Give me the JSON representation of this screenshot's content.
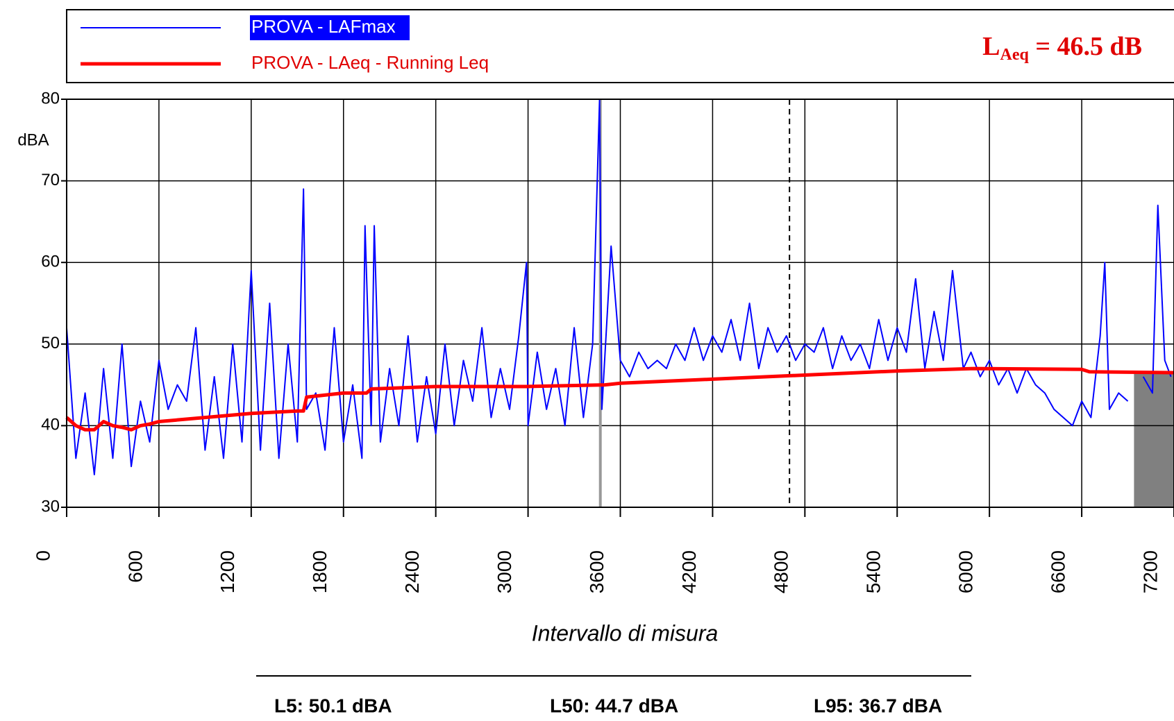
{
  "chart_data": {
    "type": "line",
    "y_label": "dBA",
    "x_label": "Intervallo di misura",
    "annotation": {
      "main": "L",
      "sub": "Aeq",
      "rest": " = 46.5 dB"
    },
    "stats": [
      "L5: 50.1 dBA",
      "L50: 44.7 dBA",
      "L95: 36.7 dBA"
    ],
    "xlim": [
      0,
      7200
    ],
    "ylim": [
      30,
      80
    ],
    "xticks": [
      0,
      600,
      1200,
      1800,
      2400,
      3000,
      3600,
      4200,
      4800,
      5400,
      6000,
      6600,
      7200
    ],
    "yticks": [
      30,
      40,
      50,
      60,
      70,
      80
    ],
    "grid": true,
    "vlines": [
      {
        "x": 3470,
        "color": "#999999",
        "dash": false
      },
      {
        "x": 4700,
        "color": "#000000",
        "dash": true
      }
    ],
    "shade": {
      "x": [
        6940,
        7200
      ],
      "y": [
        30,
        46.5
      ],
      "color": "#808080"
    },
    "series": [
      {
        "name": "PROVA - LAFmax",
        "color": "#0000ff",
        "x": [
          0,
          60,
          120,
          180,
          240,
          300,
          360,
          420,
          480,
          540,
          600,
          660,
          720,
          780,
          840,
          900,
          960,
          1020,
          1080,
          1140,
          1200,
          1260,
          1320,
          1380,
          1440,
          1500,
          1540,
          1560,
          1620,
          1680,
          1740,
          1800,
          1860,
          1920,
          1940,
          1980,
          2000,
          2040,
          2100,
          2160,
          2220,
          2280,
          2340,
          2400,
          2460,
          2520,
          2580,
          2640,
          2700,
          2760,
          2820,
          2880,
          2940,
          2990,
          3000,
          3060,
          3120,
          3180,
          3240,
          3300,
          3360,
          3420,
          3465,
          3480,
          3540,
          3600,
          3660,
          3720,
          3780,
          3840,
          3900,
          3960,
          4020,
          4080,
          4140,
          4200,
          4260,
          4320,
          4380,
          4440,
          4500,
          4560,
          4620,
          4680,
          4740,
          4800,
          4860,
          4920,
          4980,
          5040,
          5100,
          5160,
          5220,
          5280,
          5340,
          5400,
          5460,
          5520,
          5580,
          5640,
          5700,
          5760,
          5830,
          5880,
          5940,
          6000,
          6060,
          6120,
          6180,
          6240,
          6300,
          6360,
          6420,
          6480,
          6540,
          6600,
          6660,
          6720,
          6750,
          6780,
          6840,
          6900,
          6940,
          7000,
          7060,
          7095,
          7140,
          7180
        ],
        "values": [
          52,
          36,
          44,
          34,
          47,
          36,
          50,
          35,
          43,
          38,
          48,
          42,
          45,
          43,
          52,
          37,
          46,
          36,
          50,
          38,
          59,
          37,
          55,
          36,
          50,
          38,
          69,
          42,
          44,
          37,
          52,
          38,
          45,
          36,
          64.5,
          40,
          64.5,
          38,
          47,
          40,
          51,
          38,
          46,
          39,
          50,
          40,
          48,
          43,
          52,
          41,
          47,
          42,
          51,
          60,
          40,
          49,
          42,
          47,
          40,
          52,
          41,
          50,
          80,
          42,
          62,
          48,
          46,
          49,
          47,
          48,
          47,
          50,
          48,
          52,
          48,
          51,
          49,
          53,
          48,
          55,
          47,
          52,
          49,
          51,
          48,
          50,
          49,
          52,
          47,
          51,
          48,
          50,
          47,
          53,
          48,
          52,
          49,
          58,
          47,
          54,
          48,
          59,
          47,
          49,
          46,
          48,
          45,
          47,
          44,
          47,
          45,
          44,
          42,
          41,
          40,
          43,
          41,
          51,
          60,
          42,
          44,
          43,
          null,
          46,
          44,
          67,
          48,
          46
        ]
      },
      {
        "name": "PROVA - LAeq - Running Leq",
        "color": "#ff0000",
        "x": [
          0,
          60,
          120,
          180,
          240,
          300,
          360,
          420,
          480,
          540,
          600,
          900,
          1200,
          1500,
          1540,
          1560,
          1800,
          1950,
          1980,
          2400,
          3000,
          3500,
          3600,
          4200,
          4800,
          5400,
          5900,
          6600,
          6650,
          7200
        ],
        "values": [
          41,
          40,
          39.5,
          39.5,
          40.5,
          40,
          39.8,
          39.5,
          40,
          40.2,
          40.5,
          41,
          41.5,
          41.8,
          41.8,
          43.5,
          44,
          44,
          44.5,
          44.8,
          44.8,
          45,
          45.2,
          45.7,
          46.2,
          46.7,
          47,
          46.9,
          46.6,
          46.5
        ]
      }
    ]
  }
}
